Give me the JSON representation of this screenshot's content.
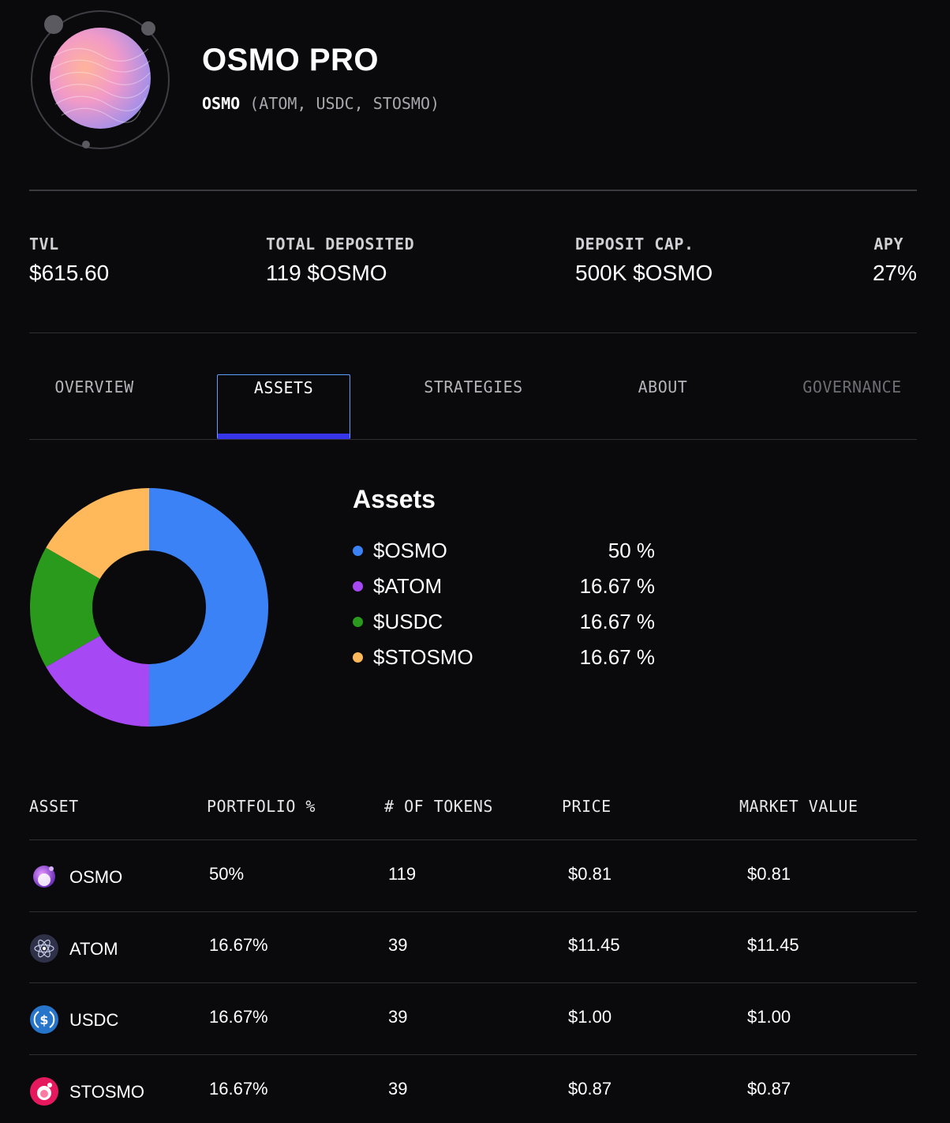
{
  "vault": {
    "title": "OSMO PRO",
    "primary_token": "OSMO",
    "secondary_tokens": "(ATOM, USDC, STOSMO)"
  },
  "stats": {
    "tvl_label": "TVL",
    "tvl_value": "$615.60",
    "deposited_label": "TOTAL DEPOSITED",
    "deposited_value": "119 $OSMO",
    "cap_label": "DEPOSIT CAP.",
    "cap_value": "500K $OSMO",
    "apy_label": "APY",
    "apy_value": "27%"
  },
  "tabs": [
    {
      "label": "OVERVIEW",
      "state": "normal"
    },
    {
      "label": "ASSETS",
      "state": "active"
    },
    {
      "label": "STRATEGIES",
      "state": "normal"
    },
    {
      "label": "ABOUT",
      "state": "normal"
    },
    {
      "label": "GOVERNANCE",
      "state": "disabled"
    }
  ],
  "allocation": {
    "heading": "Assets",
    "items": [
      {
        "name": "$OSMO",
        "pct_label": "50 %",
        "color": "#3b82f6"
      },
      {
        "name": "$ATOM",
        "pct_label": "16.67 %",
        "color": "#a748f5"
      },
      {
        "name": "$USDC",
        "pct_label": "16.67 %",
        "color": "#2a9a1c"
      },
      {
        "name": "$STOSMO",
        "pct_label": "16.67 %",
        "color": "#ffb85a"
      }
    ]
  },
  "chart_data": {
    "type": "pie",
    "donut": true,
    "categories": [
      "$OSMO",
      "$ATOM",
      "$USDC",
      "$STOSMO"
    ],
    "values": [
      50,
      16.67,
      16.67,
      16.67
    ],
    "colors": [
      "#3b82f6",
      "#a748f5",
      "#2a9a1c",
      "#ffb85a"
    ]
  },
  "table": {
    "headers": [
      "ASSET",
      "PORTFOLIO %",
      "# OF TOKENS",
      "PRICE",
      "MARKET VALUE"
    ],
    "rows": [
      {
        "asset": "OSMO",
        "portfolio": "50%",
        "tokens": "119",
        "price": "$0.81",
        "market_value": "$0.81",
        "icon": "osmo-token-icon"
      },
      {
        "asset": "ATOM",
        "portfolio": "16.67%",
        "tokens": "39",
        "price": "$11.45",
        "market_value": "$11.45",
        "icon": "atom-token-icon"
      },
      {
        "asset": "USDC",
        "portfolio": "16.67%",
        "tokens": "39",
        "price": "$1.00",
        "market_value": "$1.00",
        "icon": "usdc-token-icon"
      },
      {
        "asset": "STOSMO",
        "portfolio": "16.67%",
        "tokens": "39",
        "price": "$0.87",
        "market_value": "$0.87",
        "icon": "stosmo-token-icon"
      }
    ]
  }
}
